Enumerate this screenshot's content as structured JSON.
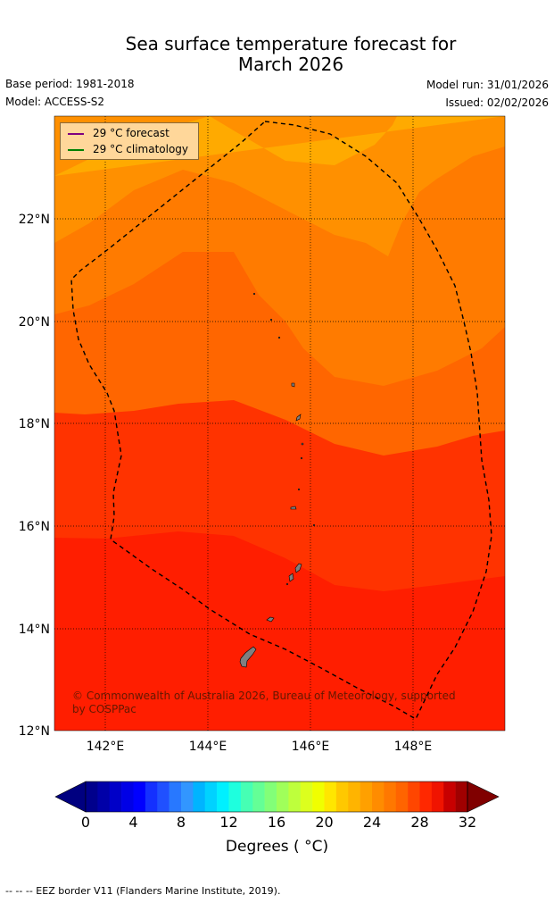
{
  "header": {
    "title_line1": "Sea surface temperature forecast for",
    "title_line2": "March 2026",
    "base_period": "Base period: 1981-2018",
    "model": "Model: ACCESS-S2",
    "model_run": "Model run: 31/01/2026",
    "issued": "Issued: 02/02/2026"
  },
  "legend": {
    "forecast_label": "29 °C  forecast",
    "forecast_color": "#800080",
    "climatology_label": "29 °C  climatology",
    "climatology_color": "#008000"
  },
  "map": {
    "lon_ticks": [
      "142°E",
      "144°E",
      "146°E",
      "148°E"
    ],
    "lat_ticks": [
      "22°N",
      "20°N",
      "18°N",
      "16°N",
      "14°N",
      "12°N"
    ],
    "lon_range": [
      141,
      149.8
    ],
    "lat_range": [
      12,
      24
    ],
    "copyright": "© Commonwealth of Australia 2026, Bureau of Meteorology, supported by COSPPac",
    "band_colors": [
      "#ff1e00",
      "#ff3300",
      "#ff6600",
      "#ff7b00",
      "#ff9000",
      "#ffaa00"
    ]
  },
  "colorbar": {
    "ticks": [
      "0",
      "4",
      "8",
      "12",
      "16",
      "20",
      "24",
      "28",
      "32"
    ],
    "title": "Degrees ( °C)",
    "colors": [
      "#00008c",
      "#0000a8",
      "#0000c8",
      "#0000e6",
      "#0000ff",
      "#1430ff",
      "#2050ff",
      "#2878ff",
      "#3296ff",
      "#00b4ff",
      "#00d2ff",
      "#00f0ff",
      "#1effde",
      "#46ffb4",
      "#64ff96",
      "#82ff78",
      "#a0ff5a",
      "#beff3c",
      "#dcff1e",
      "#f0ff00",
      "#ffe600",
      "#ffc800",
      "#ffb400",
      "#ffa000",
      "#ff8c00",
      "#ff7800",
      "#ff6400",
      "#ff4600",
      "#ff2800",
      "#f01400",
      "#c80000",
      "#a00000"
    ],
    "under_color": "#000080",
    "over_color": "#800000"
  },
  "footnote": "--  --  -- EEZ border V11 (Flanders Marine Institute, 2019)."
}
